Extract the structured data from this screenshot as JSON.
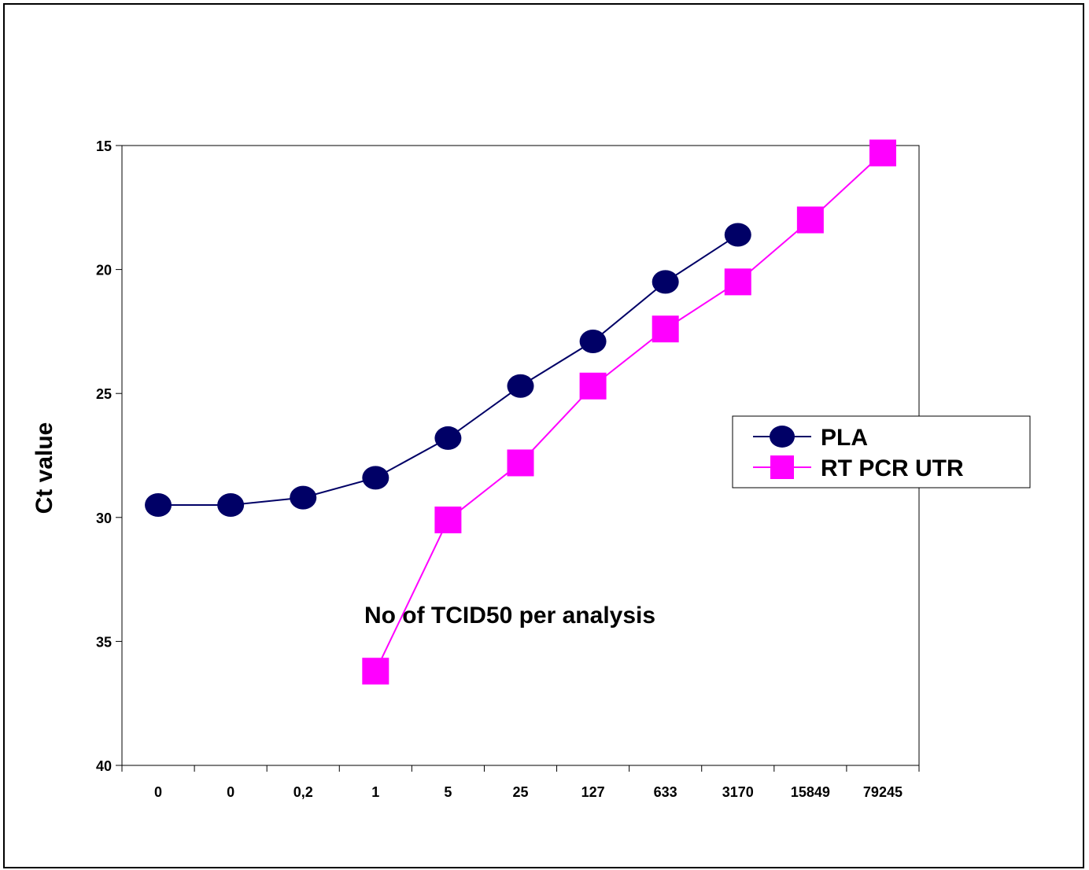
{
  "chart_data": {
    "type": "line",
    "title": "",
    "xlabel": "No of TCID50 per analysis",
    "ylabel": "Ct value",
    "categories": [
      "0",
      "0",
      "0,2",
      "1",
      "5",
      "25",
      "127",
      "633",
      "3170",
      "15849",
      "79245"
    ],
    "y_ticks": [
      "15",
      "20",
      "25",
      "30",
      "35",
      "40"
    ],
    "ylim": [
      15,
      40
    ],
    "y_inverted": true,
    "grid": false,
    "legend_position": "right",
    "series": [
      {
        "name": "PLA",
        "color": "#000066",
        "marker": "circle",
        "values": [
          29.5,
          29.5,
          29.2,
          28.4,
          26.8,
          24.7,
          22.9,
          20.5,
          18.6,
          null,
          null
        ]
      },
      {
        "name": "RT PCR UTR",
        "color": "#ff00ff",
        "marker": "square",
        "values": [
          null,
          null,
          null,
          36.2,
          30.1,
          27.8,
          24.7,
          22.4,
          20.5,
          18.0,
          15.3
        ]
      }
    ]
  }
}
